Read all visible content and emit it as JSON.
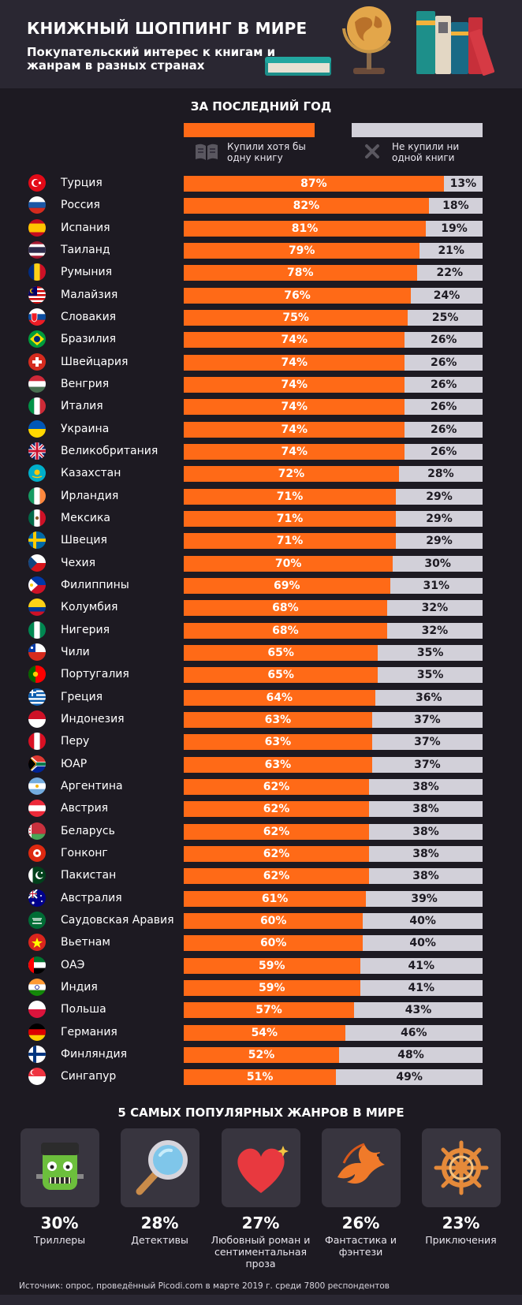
{
  "header": {
    "title": "КНИЖНЫЙ ШОППИНГ В МИРЕ",
    "subtitle": "Покупательский интерес к книгам и жанрам в разных странах"
  },
  "section_title": "ЗА ПОСЛЕДНИЙ ГОД",
  "legend": {
    "bought": "Купили хотя бы одну книгу",
    "not_bought": "Не купили ни одной книги"
  },
  "colors": {
    "bought": "#ff6a17",
    "not_bought": "#d2d0d9",
    "background": "#1d1a22"
  },
  "chart_data": {
    "type": "bar",
    "orientation": "horizontal-stacked",
    "title": "ЗА ПОСЛЕДНИЙ ГОД",
    "series": [
      {
        "name": "Купили хотя бы одну книгу",
        "values": [
          87,
          82,
          81,
          79,
          78,
          76,
          75,
          74,
          74,
          74,
          74,
          74,
          74,
          72,
          71,
          71,
          71,
          70,
          69,
          68,
          68,
          65,
          65,
          64,
          63,
          63,
          63,
          62,
          62,
          62,
          62,
          62,
          61,
          60,
          60,
          59,
          59,
          57,
          54,
          52,
          51
        ]
      },
      {
        "name": "Не купили ни одной книги",
        "values": [
          13,
          18,
          19,
          21,
          22,
          24,
          25,
          26,
          26,
          26,
          26,
          26,
          26,
          28,
          29,
          29,
          29,
          30,
          31,
          32,
          32,
          35,
          35,
          36,
          37,
          37,
          37,
          38,
          38,
          38,
          38,
          38,
          39,
          40,
          40,
          41,
          41,
          43,
          46,
          48,
          49
        ]
      }
    ],
    "categories": [
      "Турция",
      "Россия",
      "Испания",
      "Таиланд",
      "Румыния",
      "Малайзия",
      "Словакия",
      "Бразилия",
      "Швейцария",
      "Венгрия",
      "Италия",
      "Украина",
      "Великобритания",
      "Казахстан",
      "Ирландия",
      "Мексика",
      "Швеция",
      "Чехия",
      "Филиппины",
      "Колумбия",
      "Нигерия",
      "Чили",
      "Португалия",
      "Греция",
      "Индонезия",
      "Перу",
      "ЮАР",
      "Аргентина",
      "Австрия",
      "Беларусь",
      "Гонконг",
      "Пакистан",
      "Австралия",
      "Саудовская Аравия",
      "Вьетнам",
      "ОАЭ",
      "Индия",
      "Польша",
      "Германия",
      "Финляндия",
      "Сингапур"
    ],
    "unit": "%",
    "xlim": [
      0,
      100
    ]
  },
  "flags": [
    "turkey",
    "russia",
    "spain",
    "thailand",
    "romania",
    "malaysia",
    "slovakia",
    "brazil",
    "switzerland",
    "hungary",
    "italy",
    "ukraine",
    "uk",
    "kazakhstan",
    "ireland",
    "mexico",
    "sweden",
    "czech",
    "philippines",
    "colombia",
    "nigeria",
    "chile",
    "portugal",
    "greece",
    "indonesia",
    "peru",
    "south-africa",
    "argentina",
    "austria",
    "belarus",
    "hong-kong",
    "pakistan",
    "australia",
    "saudi-arabia",
    "vietnam",
    "uae",
    "india",
    "poland",
    "germany",
    "finland",
    "singapore"
  ],
  "genres_title": "5 САМЫХ ПОПУЛЯРНЫХ ЖАНРОВ В МИРЕ",
  "genres": [
    {
      "pct": "30%",
      "name": "Триллеры",
      "icon": "frankenstein-icon"
    },
    {
      "pct": "28%",
      "name": "Детективы",
      "icon": "magnifier-icon"
    },
    {
      "pct": "27%",
      "name": "Любовный роман и сентиментальная проза",
      "icon": "heart-icon"
    },
    {
      "pct": "26%",
      "name": "Фантастика и фэнтези",
      "icon": "dragon-icon"
    },
    {
      "pct": "23%",
      "name": "Приключения",
      "icon": "ship-wheel-icon"
    }
  ],
  "source": "Источник: опрос, проведённый Picodi.com в марте 2019 г. среди 7800 респондентов"
}
